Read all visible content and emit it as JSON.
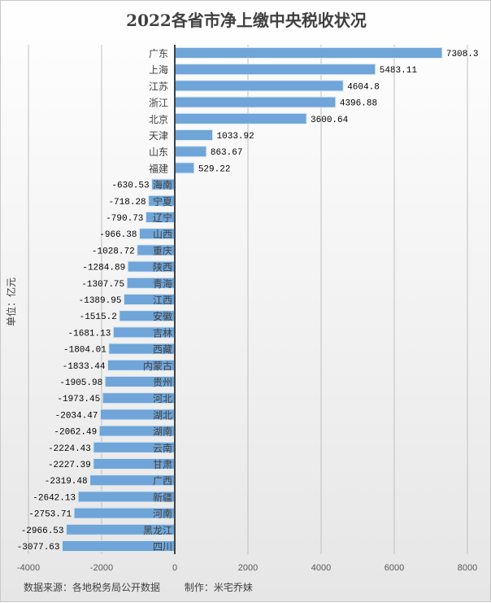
{
  "chart_data": {
    "type": "bar",
    "orientation": "horizontal",
    "title": "2022各省市净上缴中央税收状况",
    "ylabel": "单位：亿元",
    "xlim": [
      -4000,
      8000
    ],
    "xticks": [
      -4000,
      -2000,
      0,
      2000,
      4000,
      6000,
      8000
    ],
    "grid": true,
    "categories": [
      "广东",
      "上海",
      "江苏",
      "浙江",
      "北京",
      "天津",
      "山东",
      "福建",
      "海南",
      "宁夏",
      "辽宁",
      "山西",
      "重庆",
      "陕西",
      "青海",
      "江西",
      "安徽",
      "吉林",
      "西藏",
      "内蒙古",
      "贵州",
      "河北",
      "湖北",
      "湖南",
      "云南",
      "甘肃",
      "广西",
      "新疆",
      "河南",
      "黑龙江",
      "四川"
    ],
    "values": [
      7308.3,
      5483.11,
      4604.8,
      4396.88,
      3600.64,
      1033.92,
      863.67,
      529.22,
      -630.53,
      -718.28,
      -790.73,
      -966.38,
      -1028.72,
      -1284.89,
      -1307.75,
      -1389.95,
      -1515.2,
      -1681.13,
      -1804.01,
      -1833.44,
      -1905.98,
      -1973.45,
      -2034.47,
      -2062.49,
      -2224.43,
      -2227.39,
      -2319.48,
      -2642.13,
      -2753.71,
      -2966.53,
      -3077.63
    ],
    "bar_color": "#6fa5d8"
  },
  "footer": {
    "source": "数据来源：各地税务局公开数据",
    "author": "制作：米宅乔妹"
  }
}
